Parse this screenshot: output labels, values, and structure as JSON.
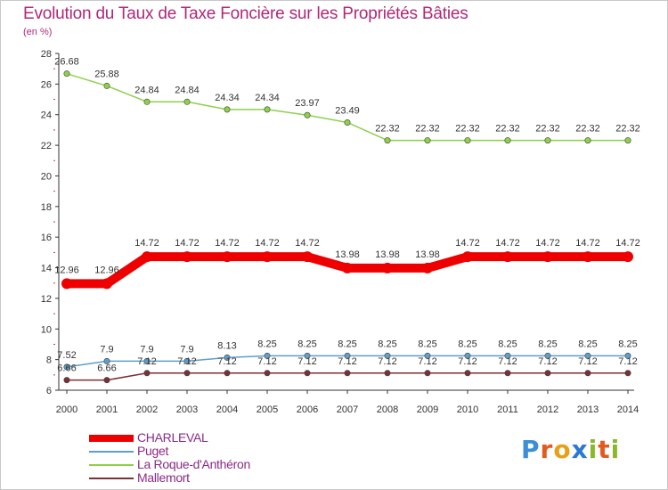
{
  "title": "Evolution du Taux de Taxe Foncière sur les Propriétés Bâties",
  "subtitle": "(en %)",
  "logo": {
    "text": "Proxiti",
    "letters": [
      "P",
      "r",
      "o",
      "x",
      "i",
      "t",
      "i"
    ],
    "colors": [
      "#3b8fd6",
      "#e35a1f",
      "#e8a018",
      "#2a7ad2",
      "#8ab82a",
      "#e35a1f",
      "#8ab82a"
    ]
  },
  "chart_data": {
    "type": "line",
    "title": "Evolution du Taux de Taxe Foncière sur les Propriétés Bâties",
    "ylabel": "(en %)",
    "xlabel": "",
    "ylim": [
      6,
      28
    ],
    "yticks": [
      6,
      8,
      10,
      12,
      14,
      16,
      18,
      20,
      22,
      24,
      26,
      28
    ],
    "categories": [
      "2000",
      "2001",
      "2002",
      "2003",
      "2004",
      "2005",
      "2006",
      "2007",
      "2008",
      "2009",
      "2010",
      "2011",
      "2012",
      "2013",
      "2014"
    ],
    "series": [
      {
        "name": "CHARLEVAL",
        "color": "#ee0000",
        "emphasis": true,
        "values": [
          12.96,
          12.96,
          14.72,
          14.72,
          14.72,
          14.72,
          14.72,
          13.98,
          13.98,
          13.98,
          14.72,
          14.72,
          14.72,
          14.72,
          14.72
        ],
        "labels": [
          "12.96",
          "12.96",
          "14.72",
          "14.72",
          "14.72",
          "14.72",
          "14.72",
          "13.98",
          "13.98",
          "13.98",
          "14.72",
          "14.72",
          "14.72",
          "14.72",
          "14.72"
        ]
      },
      {
        "name": "Puget",
        "color": "#5e9ec9",
        "values": [
          7.52,
          7.9,
          7.9,
          7.9,
          8.13,
          8.25,
          8.25,
          8.25,
          8.25,
          8.25,
          8.25,
          8.25,
          8.25,
          8.25,
          8.25
        ],
        "labels": [
          "7.52",
          "7.9",
          "7.9",
          "7.9",
          "8.13",
          "8.25",
          "8.25",
          "8.25",
          "8.25",
          "8.25",
          "8.25",
          "8.25",
          "8.25",
          "8.25",
          "8.25"
        ]
      },
      {
        "name": "La Roque-d'Anthéron",
        "color": "#8ed04a",
        "values": [
          26.68,
          25.88,
          24.84,
          24.84,
          24.34,
          24.34,
          23.97,
          23.49,
          22.32,
          22.32,
          22.32,
          22.32,
          22.32,
          22.32,
          22.32
        ],
        "labels": [
          "26.68",
          "25.88",
          "24.84",
          "24.84",
          "24.34",
          "24.34",
          "23.97",
          "23.49",
          "22.32",
          "22.32",
          "22.32",
          "22.32",
          "22.32",
          "22.32",
          "22.32"
        ]
      },
      {
        "name": "Mallemort",
        "color": "#7a3036",
        "values": [
          6.66,
          6.66,
          7.12,
          7.12,
          7.12,
          7.12,
          7.12,
          7.12,
          7.12,
          7.12,
          7.12,
          7.12,
          7.12,
          7.12,
          7.12
        ],
        "labels": [
          "6.66",
          "6.66",
          "7.12",
          "7.12",
          "7.12",
          "7.12",
          "7.12",
          "7.12",
          "7.12",
          "7.12",
          "7.12",
          "7.12",
          "7.12",
          "7.12",
          "7.12"
        ]
      }
    ],
    "legend": {
      "placement": "bottom-left",
      "entries": [
        "CHARLEVAL",
        "Puget",
        "La Roque-d'Anthéron",
        "Mallemort"
      ]
    },
    "grid": false
  }
}
